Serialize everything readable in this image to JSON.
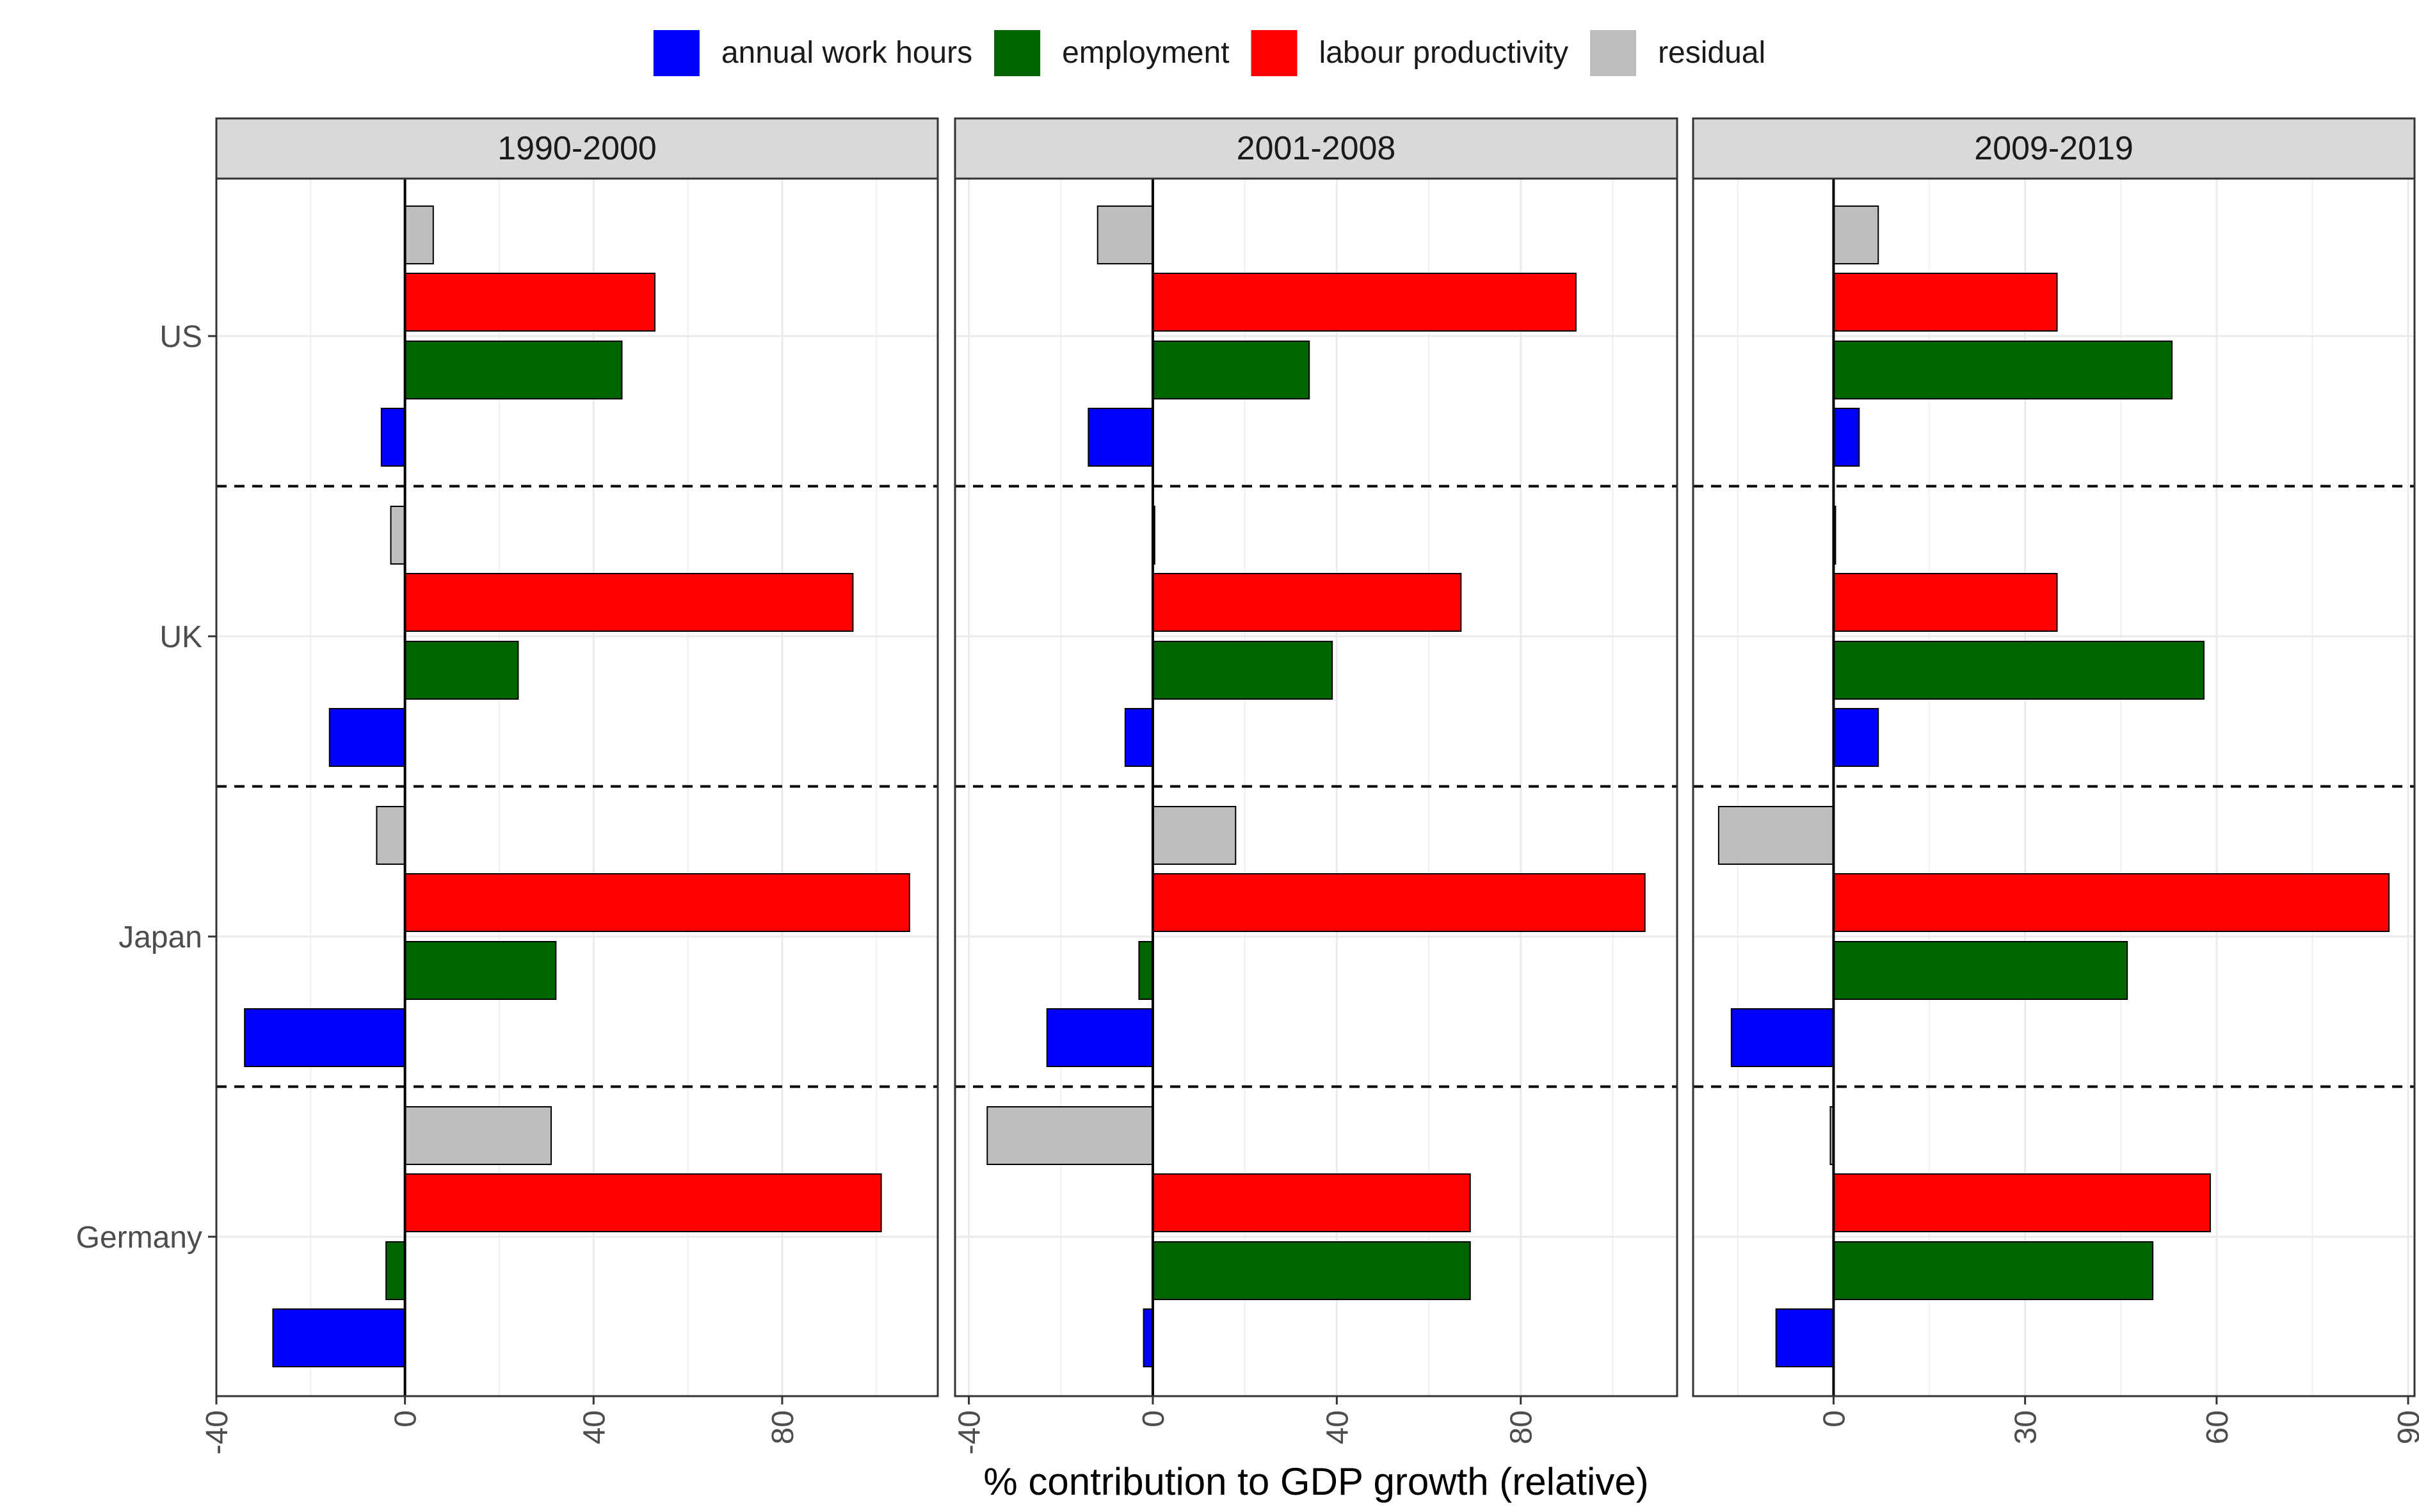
{
  "chart_data": {
    "type": "bar",
    "orientation": "horizontal",
    "xlabel": "% contribution to GDP growth (relative)",
    "legend_position": "top",
    "categories": [
      "US",
      "UK",
      "Japan",
      "Germany"
    ],
    "series_names": [
      "annual work hours",
      "employment",
      "labour productivity",
      "residual"
    ],
    "colors": {
      "annual work hours": "#0000FF",
      "employment": "#006400",
      "labour productivity": "#FF0000",
      "residual": "#BEBEBE"
    },
    "panels": [
      {
        "title": "1990-2000",
        "xlim": [
          -40,
          113
        ],
        "xticks": [
          -40,
          0,
          40,
          80
        ],
        "values": {
          "US": {
            "annual work hours": -5,
            "employment": 46,
            "labour productivity": 53,
            "residual": 6
          },
          "UK": {
            "annual work hours": -16,
            "employment": 24,
            "labour productivity": 95,
            "residual": -3
          },
          "Japan": {
            "annual work hours": -34,
            "employment": 32,
            "labour productivity": 107,
            "residual": -6
          },
          "Germany": {
            "annual work hours": -28,
            "employment": -4,
            "labour productivity": 101,
            "residual": 31
          }
        }
      },
      {
        "title": "2001-2008",
        "xlim": [
          -43,
          114
        ],
        "xticks": [
          -40,
          0,
          40,
          80
        ],
        "values": {
          "US": {
            "annual work hours": -14,
            "employment": 34,
            "labour productivity": 92,
            "residual": -12
          },
          "UK": {
            "annual work hours": -6,
            "employment": 39,
            "labour productivity": 67,
            "residual": 0.4
          },
          "Japan": {
            "annual work hours": -23,
            "employment": -3,
            "labour productivity": 107,
            "residual": 18
          },
          "Germany": {
            "annual work hours": -2,
            "employment": 69,
            "labour productivity": 69,
            "residual": -36
          }
        }
      },
      {
        "title": "2009-2019",
        "xlim": [
          -22,
          91
        ],
        "xticks": [
          0,
          30,
          60,
          90
        ],
        "values": {
          "US": {
            "annual work hours": 4,
            "employment": 53,
            "labour productivity": 35,
            "residual": 7
          },
          "UK": {
            "annual work hours": 7,
            "employment": 58,
            "labour productivity": 35,
            "residual": 0.3
          },
          "Japan": {
            "annual work hours": -16,
            "employment": 46,
            "labour productivity": 87,
            "residual": -18
          },
          "Germany": {
            "annual work hours": -9,
            "employment": 50,
            "labour productivity": 59,
            "residual": -0.5
          }
        }
      }
    ]
  }
}
